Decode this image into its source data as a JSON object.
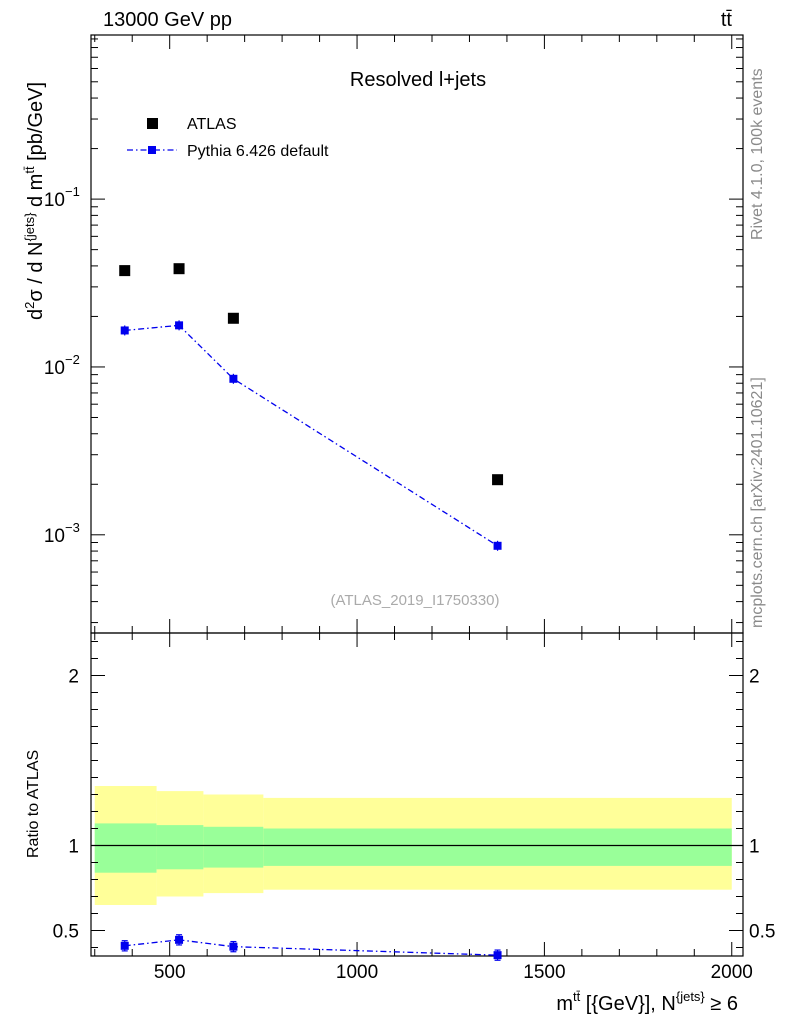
{
  "header": {
    "energy": "13000 GeV pp",
    "process": "tt̄"
  },
  "side": {
    "rivet": "Rivet 4.1.0,  100k events",
    "source": "mcplots.cern.ch [arXiv:2401.10621]"
  },
  "chart_data": [
    {
      "type": "scatter",
      "panel": "main",
      "title": "Resolved l+jets",
      "watermark": "(ATLAS_2019_I1750330)",
      "ylabel": "d²σ / d N^{jets} d m^{tt̄} [pb/GeV]",
      "xlim": [
        290,
        2030
      ],
      "ylim": [
        0.00026,
        0.95
      ],
      "yscale": "log",
      "ytick_labels": [
        {
          "value": 0.1,
          "mantissa": "10",
          "exp": "−1"
        },
        {
          "value": 0.01,
          "mantissa": "10",
          "exp": "−2"
        },
        {
          "value": 0.001,
          "mantissa": "10",
          "exp": "−3"
        }
      ],
      "legend": [
        {
          "label": "ATLAS",
          "marker": "square",
          "color": "#000000"
        },
        {
          "label": "Pythia 6.426 default",
          "marker": "square-line",
          "color": "#0000ee"
        }
      ],
      "series": [
        {
          "name": "ATLAS",
          "color": "#000000",
          "points": [
            {
              "x": 380,
              "y": 0.0375
            },
            {
              "x": 525,
              "y": 0.0385
            },
            {
              "x": 670,
              "y": 0.0195
            },
            {
              "x": 1375,
              "y": 0.00213
            }
          ]
        },
        {
          "name": "Pythia 6.426 default",
          "color": "#0000ee",
          "points": [
            {
              "x": 380,
              "y": 0.0165
            },
            {
              "x": 525,
              "y": 0.0177
            },
            {
              "x": 670,
              "y": 0.0085
            },
            {
              "x": 1375,
              "y": 0.00086
            }
          ]
        }
      ]
    },
    {
      "type": "line",
      "panel": "ratio",
      "ylabel": "Ratio to ATLAS",
      "xlabel": "m^{tt̄} [{GeV}], N^{jets} ≥ 6",
      "xlim": [
        290,
        2030
      ],
      "ylim": [
        0.35,
        2.25
      ],
      "x_ticks": [
        500,
        1000,
        1500,
        2000
      ],
      "y_ticks": [
        0.5,
        1,
        2
      ],
      "bands": [
        {
          "x0": 300,
          "x1": 465,
          "yellow": [
            0.65,
            1.35
          ],
          "green": [
            0.84,
            1.13
          ]
        },
        {
          "x0": 465,
          "x1": 590,
          "yellow": [
            0.7,
            1.32
          ],
          "green": [
            0.86,
            1.12
          ]
        },
        {
          "x0": 590,
          "x1": 750,
          "yellow": [
            0.72,
            1.3
          ],
          "green": [
            0.87,
            1.11
          ]
        },
        {
          "x0": 750,
          "x1": 2000,
          "yellow": [
            0.74,
            1.28
          ],
          "green": [
            0.88,
            1.1
          ]
        }
      ],
      "series": [
        {
          "name": "Pythia 6.426 default",
          "color": "#0000ee",
          "points": [
            {
              "x": 380,
              "y": 0.41,
              "err": 0.03
            },
            {
              "x": 525,
              "y": 0.445,
              "err": 0.03
            },
            {
              "x": 670,
              "y": 0.405,
              "err": 0.03
            },
            {
              "x": 1375,
              "y": 0.355,
              "err": 0.03
            }
          ]
        }
      ]
    }
  ]
}
